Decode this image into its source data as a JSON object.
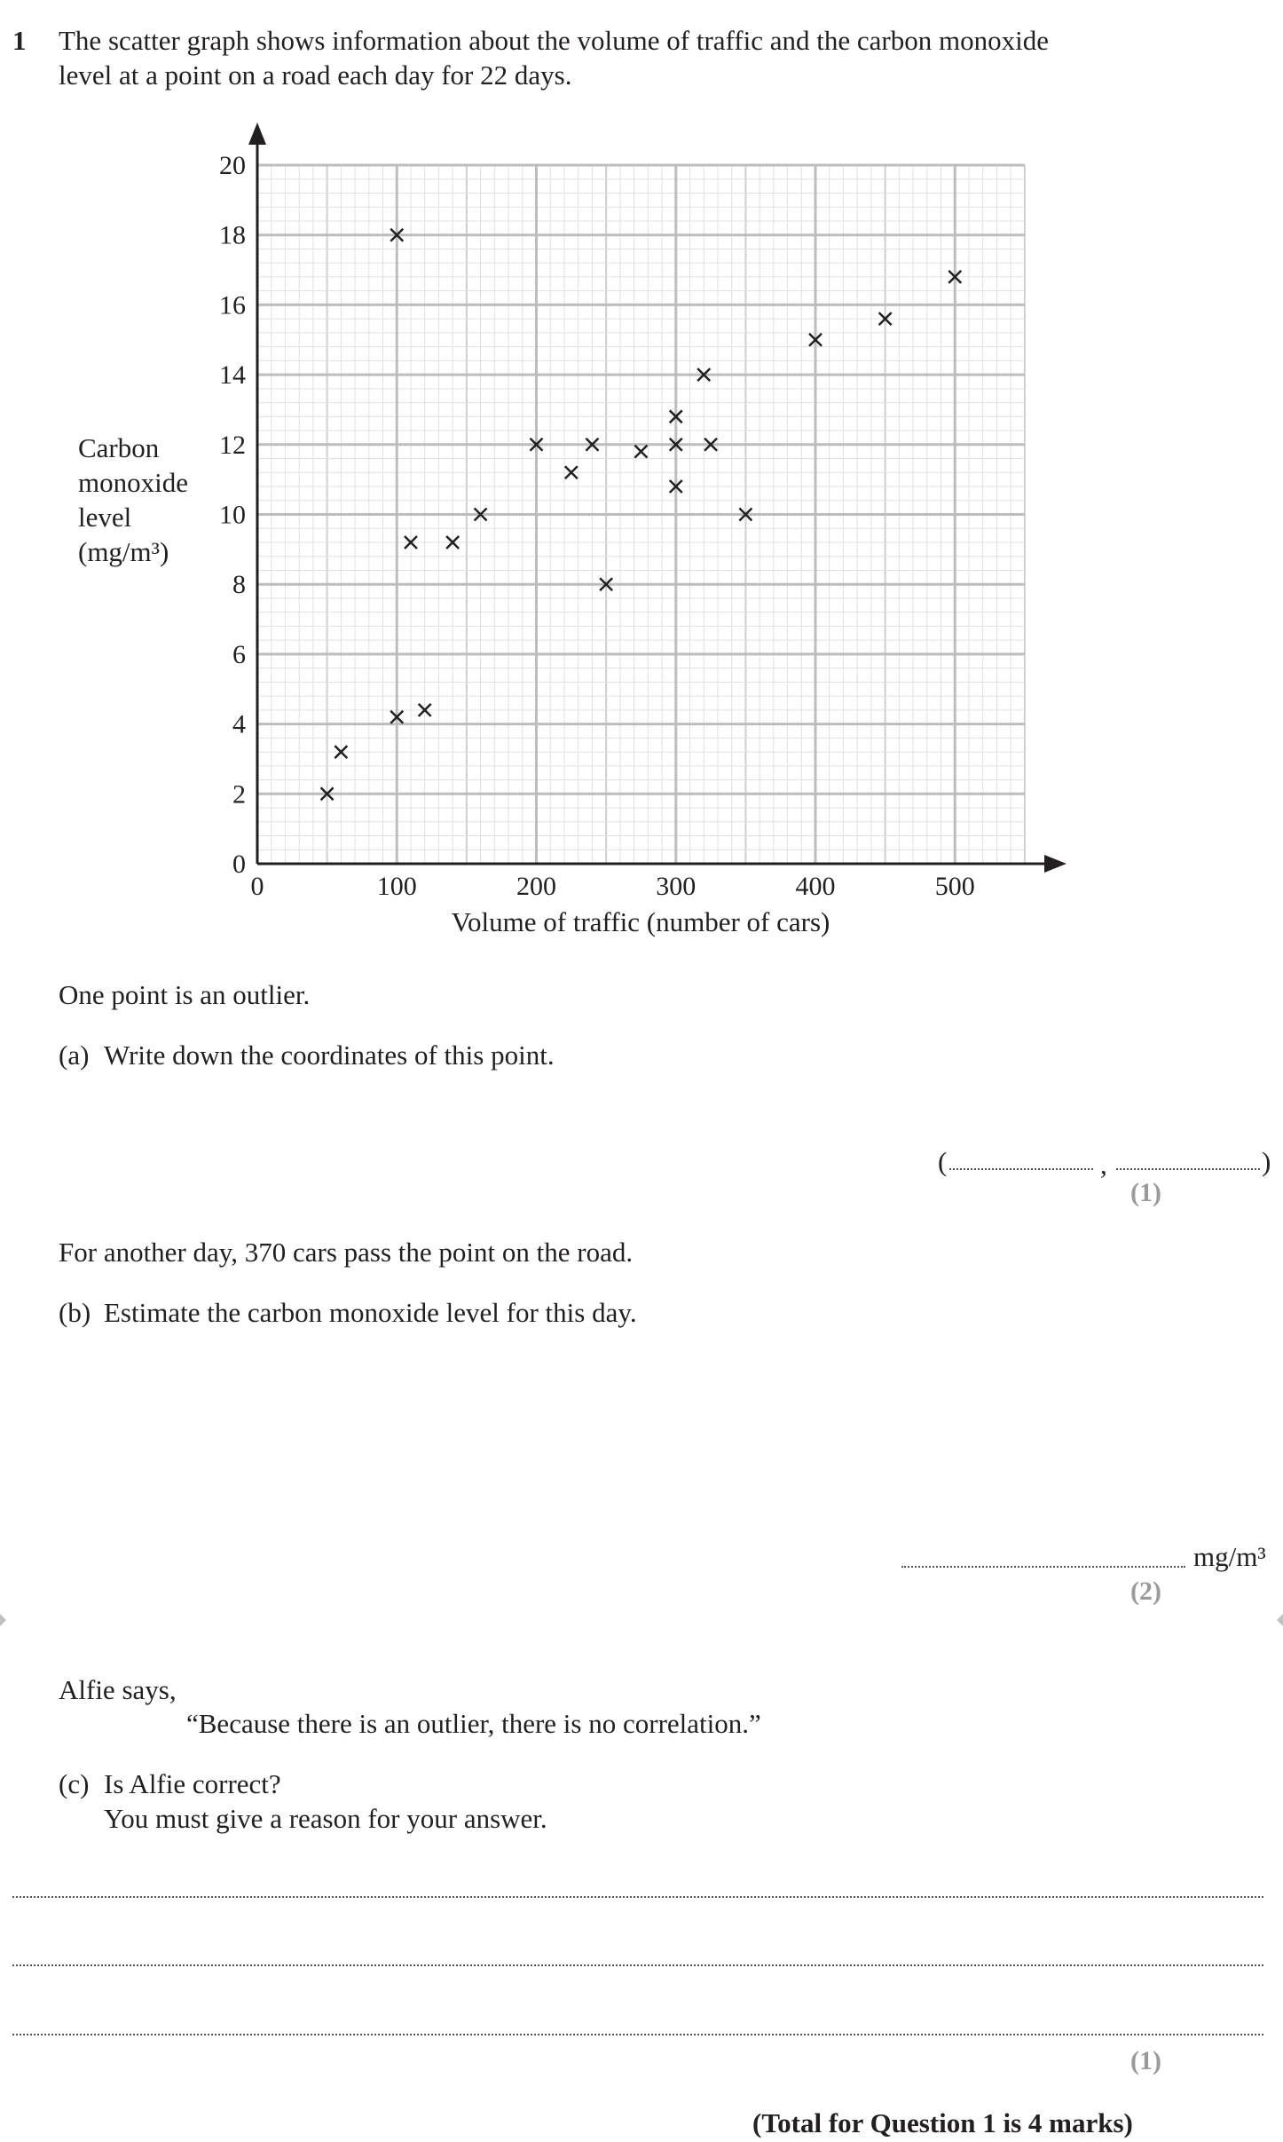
{
  "question": {
    "number": "1",
    "intro_line1": "The scatter graph shows information about the volume of traffic and the carbon monoxide",
    "intro_line2": "level at a point on a road each day for 22 days."
  },
  "chart_data": {
    "type": "scatter",
    "title": "",
    "xlabel": "Volume of traffic (number of cars)",
    "ylabel_lines": [
      "Carbon",
      "monoxide",
      "level",
      "(mg/m³)"
    ],
    "xlim": [
      0,
      550
    ],
    "ylim": [
      0,
      20
    ],
    "x_ticks": [
      0,
      100,
      200,
      300,
      400,
      500
    ],
    "y_ticks": [
      0,
      2,
      4,
      6,
      8,
      10,
      12,
      14,
      16,
      18,
      20
    ],
    "grid": true,
    "marker": "cross",
    "points": [
      {
        "x": 50,
        "y": 2
      },
      {
        "x": 60,
        "y": 3.2
      },
      {
        "x": 100,
        "y": 4.2
      },
      {
        "x": 120,
        "y": 4.4
      },
      {
        "x": 100,
        "y": 18
      },
      {
        "x": 110,
        "y": 9.2
      },
      {
        "x": 140,
        "y": 9.2
      },
      {
        "x": 160,
        "y": 10
      },
      {
        "x": 200,
        "y": 12
      },
      {
        "x": 225,
        "y": 11.2
      },
      {
        "x": 240,
        "y": 12
      },
      {
        "x": 250,
        "y": 8
      },
      {
        "x": 275,
        "y": 11.8
      },
      {
        "x": 300,
        "y": 12
      },
      {
        "x": 300,
        "y": 12.8
      },
      {
        "x": 300,
        "y": 10.8
      },
      {
        "x": 320,
        "y": 14
      },
      {
        "x": 325,
        "y": 12
      },
      {
        "x": 350,
        "y": 10
      },
      {
        "x": 400,
        "y": 15
      },
      {
        "x": 450,
        "y": 15.6
      },
      {
        "x": 500,
        "y": 16.8
      }
    ]
  },
  "part_intro": "One point is an outlier.",
  "part_a": {
    "label": "(a)",
    "text": "Write down the coordinates of this point.",
    "open_paren": "(",
    "comma": ",",
    "close_paren": ")",
    "marks": "(1)"
  },
  "part_b_intro": "For another day, 370 cars pass the point on the road.",
  "part_b": {
    "label": "(b)",
    "text": "Estimate the carbon monoxide level for this day.",
    "unit": "mg/m³",
    "marks": "(2)"
  },
  "alfie": {
    "says": "Alfie says,",
    "quote": "“Because there is an outlier, there is no correlation.”"
  },
  "part_c": {
    "label": "(c)",
    "line1": "Is Alfie correct?",
    "line2": "You must give a reason for your answer.",
    "marks": "(1)"
  },
  "total": "(Total for Question 1 is 4 marks)"
}
